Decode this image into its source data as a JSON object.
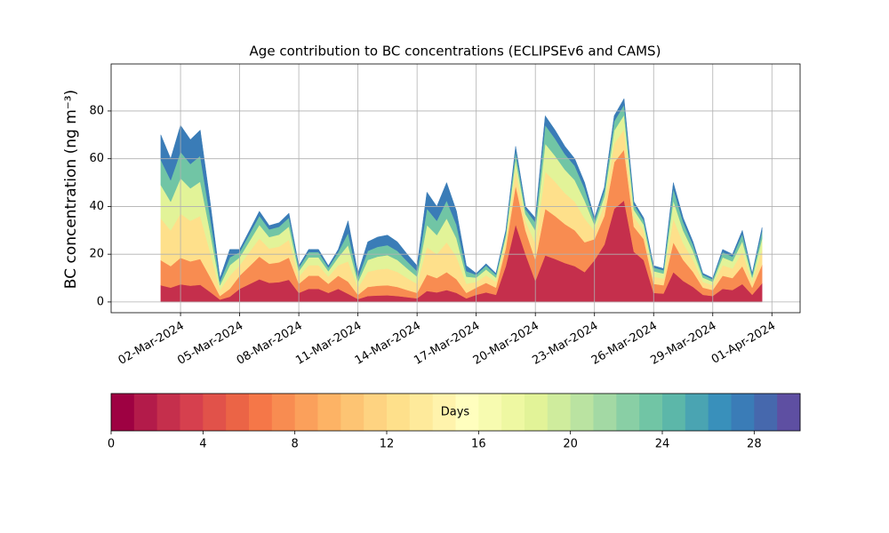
{
  "chart_data": {
    "type": "stacked-area",
    "title": "Age contribution to BC concentrations (ECLIPSEv6 and CAMS)",
    "y_label": "BC concentration (ng m⁻³)",
    "x": [
      "2024-03-01T00:00",
      "2024-03-01T12:00",
      "2024-03-02T00:00",
      "2024-03-02T12:00",
      "2024-03-03T00:00",
      "2024-03-03T12:00",
      "2024-03-04T00:00",
      "2024-03-04T12:00",
      "2024-03-05T00:00",
      "2024-03-05T12:00",
      "2024-03-06T00:00",
      "2024-03-06T12:00",
      "2024-03-07T00:00",
      "2024-03-07T12:00",
      "2024-03-08T00:00",
      "2024-03-08T12:00",
      "2024-03-09T00:00",
      "2024-03-09T12:00",
      "2024-03-10T00:00",
      "2024-03-10T12:00",
      "2024-03-11T00:00",
      "2024-03-11T12:00",
      "2024-03-12T00:00",
      "2024-03-12T12:00",
      "2024-03-13T00:00",
      "2024-03-13T12:00",
      "2024-03-14T00:00",
      "2024-03-14T12:00",
      "2024-03-15T00:00",
      "2024-03-15T12:00",
      "2024-03-16T00:00",
      "2024-03-16T12:00",
      "2024-03-17T00:00",
      "2024-03-17T12:00",
      "2024-03-18T00:00",
      "2024-03-18T12:00",
      "2024-03-19T00:00",
      "2024-03-19T12:00",
      "2024-03-20T00:00",
      "2024-03-20T12:00",
      "2024-03-21T00:00",
      "2024-03-21T12:00",
      "2024-03-22T00:00",
      "2024-03-22T12:00",
      "2024-03-23T00:00",
      "2024-03-23T12:00",
      "2024-03-24T00:00",
      "2024-03-24T12:00",
      "2024-03-25T00:00",
      "2024-03-25T12:00",
      "2024-03-26T00:00",
      "2024-03-26T12:00",
      "2024-03-27T00:00",
      "2024-03-27T12:00",
      "2024-03-28T00:00",
      "2024-03-28T12:00",
      "2024-03-29T00:00",
      "2024-03-29T12:00",
      "2024-03-30T00:00",
      "2024-03-30T12:00",
      "2024-03-31T00:00",
      "2024-03-31T12:00"
    ],
    "series": [
      {
        "color": "#c52f4c",
        "values": [
          7,
          6,
          7.4,
          6.8,
          7.2,
          4.2,
          1,
          2.2,
          5.5,
          7.5,
          9.5,
          8,
          8.3,
          9.3,
          3.8,
          5.5,
          5.5,
          3.8,
          5.5,
          3.4,
          1.2,
          2.5,
          2.7,
          2.8,
          2.5,
          2,
          1.5,
          4.6,
          4,
          5,
          3.8,
          1.5,
          3,
          4,
          3,
          15,
          32.5,
          20,
          8.8,
          19.5,
          18,
          16.3,
          15,
          12.5,
          17.5,
          24,
          39,
          42.5,
          21,
          17.5,
          3.8,
          3.5,
          12.5,
          8.8,
          6.3,
          3,
          2.5,
          5.5,
          5,
          7.5,
          3,
          7.8
        ]
      },
      {
        "color": "#f88c51",
        "values": [
          10.5,
          9,
          11.1,
          10.2,
          10.8,
          6.3,
          1.5,
          3.3,
          5.5,
          7.5,
          9.5,
          8,
          8.3,
          9.3,
          3.8,
          5.5,
          5.5,
          3.8,
          5.5,
          5.1,
          1.8,
          3.8,
          4.1,
          4.2,
          3.8,
          3,
          2.3,
          6.9,
          6,
          7.5,
          5.7,
          2.3,
          3,
          4,
          3,
          7.5,
          16.3,
          10,
          8.8,
          19.5,
          18,
          16.3,
          15,
          12.5,
          8.8,
          12,
          19.5,
          21.3,
          10.5,
          8.8,
          3.8,
          3.5,
          12.5,
          8.8,
          6.3,
          3,
          2.5,
          5.5,
          5,
          7.5,
          3,
          7.8
        ]
      },
      {
        "color": "#fee08b",
        "values": [
          17.5,
          15,
          18.5,
          17,
          18,
          10.5,
          2.5,
          5.5,
          4.4,
          6,
          7.6,
          6.4,
          6.6,
          7.4,
          3,
          4.4,
          4.4,
          3,
          4.4,
          8.5,
          3,
          6.3,
          6.8,
          7,
          6.3,
          5,
          3.8,
          11.5,
          10,
          12.5,
          9.5,
          3.8,
          2.4,
          3.2,
          2.4,
          3,
          6.5,
          4,
          7,
          15.6,
          14.4,
          13,
          12,
          10,
          3.5,
          4.8,
          7.8,
          8.5,
          4.2,
          3.5,
          3,
          2.8,
          10,
          7,
          5,
          2.4,
          2,
          4.4,
          4,
          6,
          2.4,
          6.2
        ]
      },
      {
        "color": "#e2f398",
        "values": [
          14,
          12,
          14.8,
          13.6,
          14.4,
          8.4,
          2,
          4.4,
          3.3,
          4.5,
          5.7,
          4.8,
          5,
          5.6,
          2.3,
          3.3,
          3.3,
          2.3,
          3.3,
          6.8,
          2.4,
          5,
          5.4,
          5.6,
          5,
          4,
          3,
          9.2,
          8,
          10,
          7.6,
          3,
          1.8,
          2.4,
          1.8,
          2.1,
          4.6,
          2.8,
          5.3,
          11.7,
          10.8,
          9.8,
          9,
          7.5,
          2.5,
          3.4,
          5.5,
          6,
          2.9,
          2.5,
          2.3,
          2.1,
          7.5,
          5.3,
          3.8,
          1.8,
          1.5,
          3.3,
          3,
          4.5,
          1.8,
          4.7
        ]
      },
      {
        "color": "#71c5a5",
        "values": [
          10.5,
          9,
          11.1,
          10.2,
          10.8,
          6.3,
          1.5,
          3.3,
          2.2,
          3,
          3.8,
          3.2,
          3.3,
          3.7,
          1.5,
          2.2,
          2.2,
          1.5,
          2.2,
          5.1,
          1.8,
          3.8,
          4.1,
          4.2,
          3.8,
          3,
          2.3,
          6.9,
          6,
          7.5,
          5.7,
          2.3,
          1.2,
          1.6,
          1.2,
          1.5,
          3.3,
          2,
          3.5,
          7.8,
          7.2,
          6.5,
          6,
          5,
          1.8,
          2.4,
          3.9,
          4.3,
          2.1,
          1.8,
          1.5,
          1.4,
          5,
          3.5,
          2.5,
          1.2,
          1,
          2.2,
          2,
          3,
          1.2,
          3.1
        ]
      },
      {
        "color": "#3a7cb7",
        "values": [
          10.5,
          9,
          11.1,
          10.2,
          10.8,
          6.3,
          1.5,
          3.3,
          1.1,
          1.5,
          1.9,
          1.6,
          1.7,
          1.9,
          0.8,
          1.1,
          1.1,
          0.8,
          1.1,
          5.1,
          1.8,
          3.8,
          4.1,
          4.2,
          3.8,
          3,
          2.3,
          6.9,
          6,
          7.5,
          5.7,
          2.3,
          0.6,
          0.8,
          0.6,
          0.9,
          2,
          1.2,
          1.8,
          3.9,
          3.6,
          3.3,
          3,
          2.5,
          1.1,
          1.4,
          2.3,
          2.6,
          1.3,
          1.1,
          0.8,
          0.7,
          2.5,
          1.8,
          1.3,
          0.6,
          0.5,
          1.1,
          1,
          1.5,
          0.6,
          1.6
        ]
      }
    ],
    "xlim": [
      "2024-02-27T11:30",
      "2024-04-02T10:20"
    ],
    "xticks": [
      {
        "value": "2024-03-02T00:00",
        "label": "02-Mar-2024"
      },
      {
        "value": "2024-03-05T00:00",
        "label": "05-Mar-2024"
      },
      {
        "value": "2024-03-08T00:00",
        "label": "08-Mar-2024"
      },
      {
        "value": "2024-03-11T00:00",
        "label": "11-Mar-2024"
      },
      {
        "value": "2024-03-14T00:00",
        "label": "14-Mar-2024"
      },
      {
        "value": "2024-03-17T00:00",
        "label": "17-Mar-2024"
      },
      {
        "value": "2024-03-20T00:00",
        "label": "20-Mar-2024"
      },
      {
        "value": "2024-03-23T00:00",
        "label": "23-Mar-2024"
      },
      {
        "value": "2024-03-26T00:00",
        "label": "26-Mar-2024"
      },
      {
        "value": "2024-03-29T00:00",
        "label": "29-Mar-2024"
      },
      {
        "value": "2024-04-01T00:00",
        "label": "01-Apr-2024"
      }
    ],
    "ylim": [
      -4.5,
      99.7
    ],
    "yticks": [
      0,
      20,
      40,
      60,
      80
    ],
    "grid": true,
    "colorbar": {
      "label": "Days",
      "lim": [
        0,
        30
      ],
      "ticks": [
        0,
        4,
        8,
        12,
        16,
        20,
        24,
        28
      ],
      "colors": [
        "#9e0142",
        "#b31b4a",
        "#c52f4c",
        "#d6404e",
        "#e1524a",
        "#eb6446",
        "#f57748",
        "#f88c51",
        "#fba05b",
        "#fdb365",
        "#fdc473",
        "#fed381",
        "#fee08b",
        "#feea9b",
        "#fff3ac",
        "#fffebe",
        "#f7fbb0",
        "#eef8a2",
        "#e2f398",
        "#cfec9d",
        "#bae3a1",
        "#a3d9a4",
        "#89cfa5",
        "#71c5a5",
        "#5cb7a9",
        "#4aa4b2",
        "#3990bb",
        "#3a7cb7",
        "#4668ad",
        "#5e4fa2"
      ]
    }
  }
}
